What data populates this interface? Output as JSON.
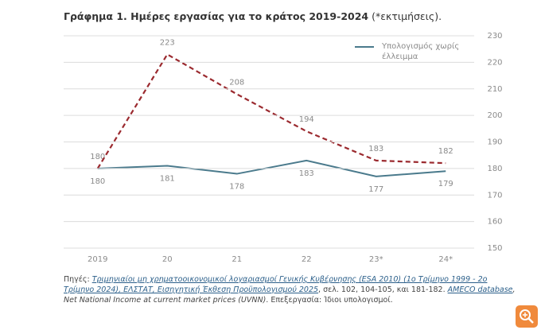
{
  "chart_data": {
    "type": "line",
    "title": "Γράφημα 1. Ημέρες εργασίας για το κράτος 2019-2024",
    "subtitle": "(*εκτιμήσεις).",
    "categories": [
      "2019",
      "20",
      "21",
      "22",
      "23*",
      "24*"
    ],
    "series": [
      {
        "color": "#9b2a2f",
        "dash": true,
        "label_side": "above",
        "values": [
          180,
          223,
          208,
          194,
          183,
          182
        ]
      },
      {
        "name": "Υπολογισμός χωρίς έλλειμμα",
        "color": "#4a7a8c",
        "dash": false,
        "label_side": "below",
        "values": [
          180,
          181,
          178,
          183,
          177,
          179
        ]
      }
    ],
    "ylim": [
      150,
      230
    ],
    "yticks": [
      150,
      160,
      170,
      180,
      190,
      200,
      210,
      220,
      230
    ],
    "grid": true,
    "y_axis_side": "right",
    "legend": "top-right",
    "source": [
      {
        "text": "Πηγές: ",
        "style": "plain"
      },
      {
        "text": "Τριμηνιαίοι μη χρηματοοικονομικοί λογαριασμοί Γενικής Κυβέρνησης (ESA 2010) (1ο Τρίμηνο 1999 - 2ο Τρίμηνο 2024), ΕΛΣΤΑΤ, Εισηγητική Έκθεση Προϋπολογισμού 2025",
        "style": "link"
      },
      {
        "text": ", σελ.  102, 104-105, και 181-182. ",
        "style": "plain"
      },
      {
        "text": "AMECO database",
        "style": "link"
      },
      {
        "text": ", Net National Income at current market prices (UVNN)",
        "style": "italic"
      },
      {
        "text": ". Επεξεργασία: Ίδιοι υπολογισμοί.",
        "style": "plain"
      }
    ]
  }
}
